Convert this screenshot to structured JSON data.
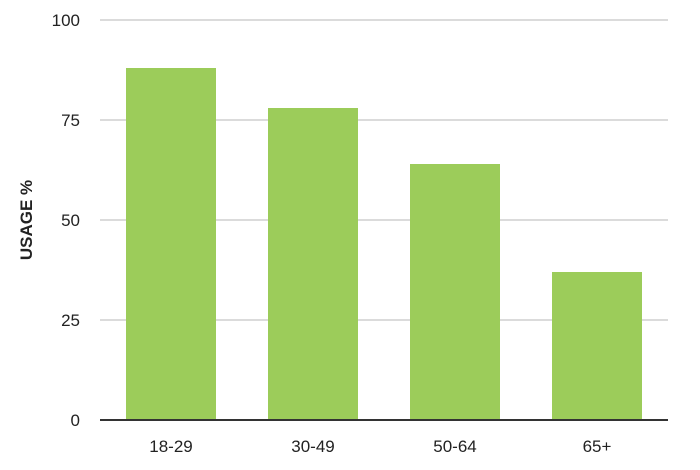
{
  "chart_data": {
    "type": "bar",
    "title": "",
    "xlabel": "",
    "ylabel": "USAGE %",
    "categories": [
      "18-29",
      "30-49",
      "50-64",
      "65+"
    ],
    "values": [
      88,
      78,
      64,
      37
    ],
    "ylim": [
      0,
      100
    ],
    "yticks": [
      "0",
      "25",
      "50",
      "75",
      "100"
    ],
    "ytick_values": [
      0,
      25,
      50,
      75,
      100
    ],
    "grid": true,
    "legend": "none",
    "bar_color": "#9ccc5a",
    "grid_color": "#cfcfcf",
    "axis_color": "#333333"
  }
}
